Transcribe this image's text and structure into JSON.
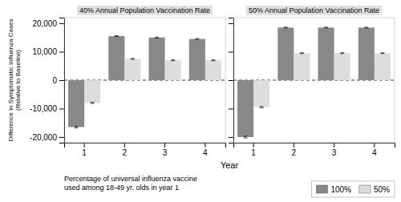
{
  "chart_data": [
    {
      "type": "bar",
      "title": "40% Annual Population Vaccination Rate",
      "xlabel": "Year",
      "ylabel": "Difference in Symptomatic Influenza Cases\n(Relative to Baseline)",
      "annotations": [
        "Percentage of universal influenza vaccine\nused among 18-49 yr. olds in year 1"
      ],
      "categories": [
        "1",
        "2",
        "3",
        "4"
      ],
      "series": [
        {
          "name": "100%",
          "color": "#888888",
          "values": [
            -16500,
            15500,
            15000,
            14500
          ],
          "errors": [
            300,
            150,
            150,
            150
          ]
        },
        {
          "name": "50%",
          "color": "#dddddd",
          "values": [
            -8000,
            7500,
            7000,
            7000
          ],
          "errors": [
            200,
            150,
            150,
            150
          ]
        }
      ],
      "ylim": [
        -22000,
        22000
      ],
      "yticks": [
        {
          "value": -20000,
          "label": "-20,000"
        },
        {
          "value": -10000,
          "label": "-10,000"
        },
        0,
        {
          "value": 10000,
          "label": "10,000"
        },
        {
          "value": 20000,
          "label": "20,000"
        }
      ],
      "legend": "lower right"
    },
    {
      "type": "bar",
      "title": "50% Annual Population Vaccination Rate",
      "categories": [
        "1",
        "2",
        "3",
        "4"
      ],
      "series": [
        {
          "color": "#888888",
          "values": [
            -20000,
            18500,
            18500,
            18500
          ],
          "errors": [
            300,
            150,
            150,
            150
          ]
        },
        {
          "color": "#dddddd",
          "values": [
            -9500,
            9500,
            9500,
            9500
          ],
          "errors": [
            200,
            150,
            150,
            150
          ]
        }
      ],
      "ylim": [
        -22000,
        22000
      ],
      "yticks": [
        {
          "value": -20000,
          "label": "-20,000"
        },
        {
          "value": -10000,
          "label": "-10,000"
        },
        0,
        {
          "value": 10000,
          "label": "10,000"
        },
        {
          "value": 20000,
          "label": "20,000"
        }
      ],
      "tick_labels": "x"
    }
  ]
}
